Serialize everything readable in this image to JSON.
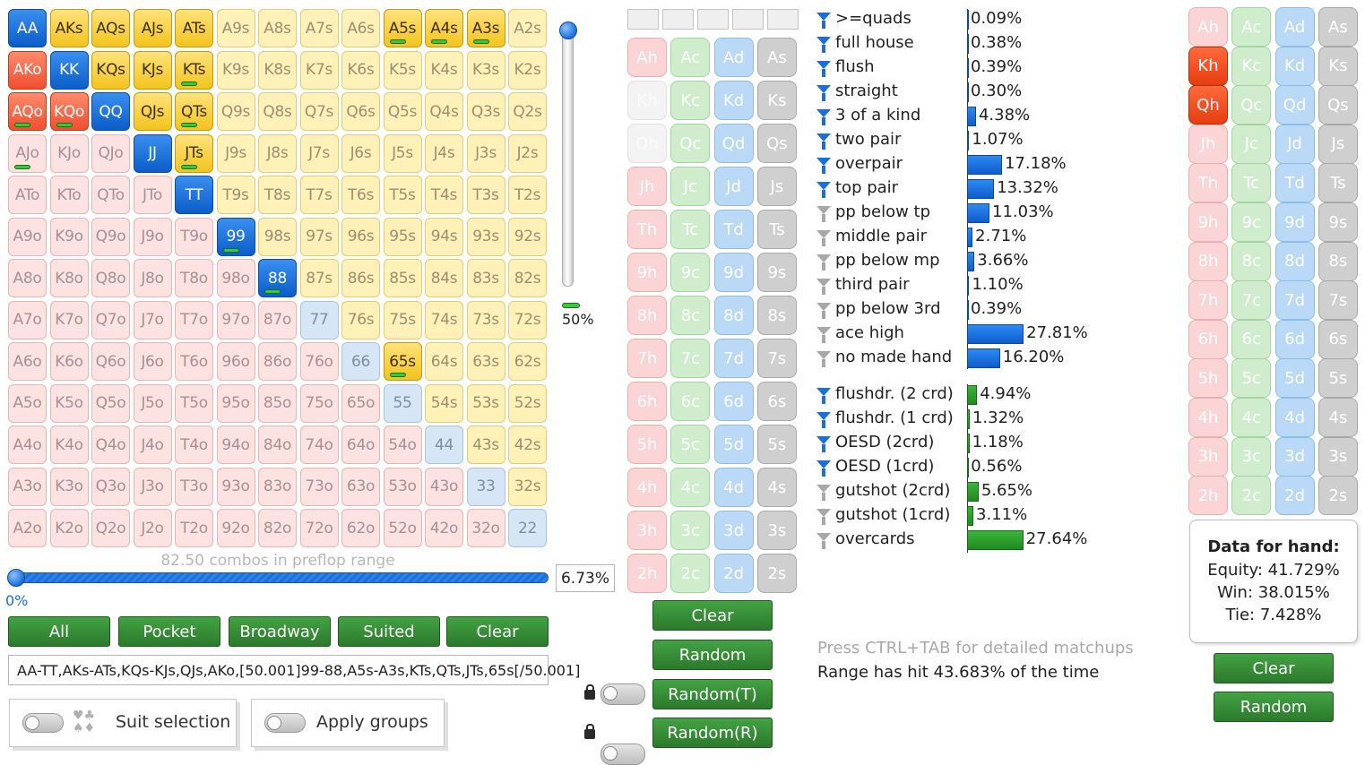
{
  "grid": {
    "ranks": [
      "A",
      "K",
      "Q",
      "J",
      "T",
      "9",
      "8",
      "7",
      "6",
      "5",
      "4",
      "3",
      "2"
    ],
    "selected": [
      "AA",
      "AKs",
      "AQs",
      "AJs",
      "ATs",
      "A5s",
      "A4s",
      "A3s",
      "AKo",
      "KK",
      "KQs",
      "KJs",
      "KTs",
      "AQo",
      "KQo",
      "QQ",
      "QJs",
      "QTs",
      "JJ",
      "JTs",
      "TT",
      "99",
      "88",
      "65s"
    ],
    "partial": [
      "A5s",
      "A4s",
      "A3s",
      "KTs",
      "AQo",
      "KQo",
      "QTs",
      "AJo",
      "JTs",
      "99",
      "88",
      "65s"
    ]
  },
  "vertical_slider": {
    "value_label": "50%"
  },
  "horizontal_slider": {
    "left_label": "0%",
    "percent_box": "6.73%",
    "combos_label": "82.50 combos in preflop range"
  },
  "buttons": {
    "all": "All",
    "pocket": "Pocket",
    "broadway": "Broadway",
    "suited": "Suited",
    "clear": "Clear"
  },
  "range_text": "AA-TT,AKs-ATs,KQs-KJs,QJs,AKo,[50.001]99-88,A5s-A3s,KTs,QTs,JTs,65s[/50.001]",
  "options": {
    "suit_selection": "Suit selection",
    "apply_groups": "Apply groups"
  },
  "board": {
    "ranks": [
      "A",
      "K",
      "Q",
      "J",
      "T",
      "9",
      "8",
      "7",
      "6",
      "5",
      "4",
      "3",
      "2"
    ],
    "suits": [
      "h",
      "c",
      "d",
      "s"
    ],
    "dead": [
      "Kh",
      "Qh"
    ],
    "buttons": {
      "clear": "Clear",
      "random": "Random",
      "random_t": "Random(T)",
      "random_r": "Random(R)"
    }
  },
  "stats": {
    "made_hands": [
      {
        "label": ">=quads",
        "value": "0.09%",
        "pct": 0.09,
        "filter": "blue"
      },
      {
        "label": "full house",
        "value": "0.38%",
        "pct": 0.38,
        "filter": "blue"
      },
      {
        "label": "flush",
        "value": "0.39%",
        "pct": 0.39,
        "filter": "blue"
      },
      {
        "label": "straight",
        "value": "0.30%",
        "pct": 0.3,
        "filter": "blue"
      },
      {
        "label": "3 of a kind",
        "value": "4.38%",
        "pct": 4.38,
        "filter": "blue"
      },
      {
        "label": "two pair",
        "value": "1.07%",
        "pct": 1.07,
        "filter": "blue"
      },
      {
        "label": "overpair",
        "value": "17.18%",
        "pct": 17.18,
        "filter": "blue"
      },
      {
        "label": "top pair",
        "value": "13.32%",
        "pct": 13.32,
        "filter": "blue"
      },
      {
        "label": "pp below tp",
        "value": "11.03%",
        "pct": 11.03,
        "filter": "gray"
      },
      {
        "label": "middle pair",
        "value": "2.71%",
        "pct": 2.71,
        "filter": "gray"
      },
      {
        "label": "pp below mp",
        "value": "3.66%",
        "pct": 3.66,
        "filter": "gray"
      },
      {
        "label": "third pair",
        "value": "1.10%",
        "pct": 1.1,
        "filter": "gray"
      },
      {
        "label": "pp below 3rd",
        "value": "0.39%",
        "pct": 0.39,
        "filter": "gray"
      },
      {
        "label": "ace high",
        "value": "27.81%",
        "pct": 27.81,
        "filter": "gray"
      },
      {
        "label": "no made hand",
        "value": "16.20%",
        "pct": 16.2,
        "filter": "gray"
      }
    ],
    "draws": [
      {
        "label": "flushdr. (2 crd)",
        "value": "4.94%",
        "pct": 4.94,
        "filter": "blue"
      },
      {
        "label": "flushdr. (1 crd)",
        "value": "1.32%",
        "pct": 1.32,
        "filter": "blue"
      },
      {
        "label": "OESD (2crd)",
        "value": "1.18%",
        "pct": 1.18,
        "filter": "blue"
      },
      {
        "label": "OESD (1crd)",
        "value": "0.56%",
        "pct": 0.56,
        "filter": "blue"
      },
      {
        "label": "gutshot (2crd)",
        "value": "5.65%",
        "pct": 5.65,
        "filter": "gray"
      },
      {
        "label": "gutshot (1crd)",
        "value": "3.11%",
        "pct": 3.11,
        "filter": "gray"
      },
      {
        "label": "overcards",
        "value": "27.64%",
        "pct": 27.64,
        "filter": "gray"
      }
    ],
    "hint": "Press CTRL+TAB for detailed matchups",
    "hit_summary": "Range has hit 43.683% of the time"
  },
  "hand": {
    "selected": [
      "Kh",
      "Qh"
    ],
    "data_title": "Data for hand:",
    "equity": "Equity: 41.729%",
    "win": "Win: 38.015%",
    "tie": "Tie: 7.428%",
    "buttons": {
      "clear": "Clear",
      "random": "Random"
    }
  },
  "colors": {
    "selected_pair": "#1a6fdc",
    "selected_suited": "#f3c41c",
    "selected_offsuit": "#f04f2e",
    "bar_blue": "#1a6fdc",
    "bar_green": "#2a9a2a",
    "button_green": "#38903a"
  }
}
